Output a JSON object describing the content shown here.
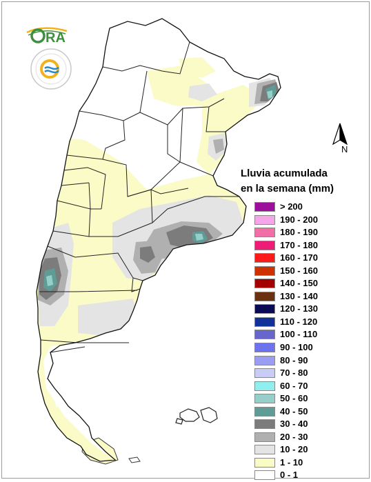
{
  "logos": {
    "ora": {
      "text": "ORA",
      "accent": "#3f8f3f",
      "sun": "#f2b21a"
    },
    "smn": {
      "ring_text": "SERVICIO METEOROLOGICO NACIONAL",
      "country": "ARGENTINA",
      "colors": [
        "#2b88c9",
        "#f2b21a"
      ]
    }
  },
  "north_arrow": {
    "label": "N"
  },
  "legend": {
    "title_line1": "Lluvia acumulada",
    "title_line2": "en la semana (mm)",
    "items": [
      {
        "label": "> 200",
        "color": "#9b0f9b"
      },
      {
        "label": "190 - 200",
        "color": "#f4a6e8"
      },
      {
        "label": "180 - 190",
        "color": "#f26ea6"
      },
      {
        "label": "170 - 180",
        "color": "#ee1c77"
      },
      {
        "label": "160 - 170",
        "color": "#ff1a1a"
      },
      {
        "label": "150 - 160",
        "color": "#cc3300"
      },
      {
        "label": "140 - 150",
        "color": "#a30000"
      },
      {
        "label": "130 - 140",
        "color": "#6b3010"
      },
      {
        "label": "120 - 130",
        "color": "#0a0a55"
      },
      {
        "label": "110 - 120",
        "color": "#113399"
      },
      {
        "label": "100 - 110",
        "color": "#6666cc"
      },
      {
        "label": "90 - 100",
        "color": "#6e72ef"
      },
      {
        "label": "80 - 90",
        "color": "#9a9df2"
      },
      {
        "label": "70 - 80",
        "color": "#c9ccf5"
      },
      {
        "label": "60 - 70",
        "color": "#8fefef"
      },
      {
        "label": "50 - 60",
        "color": "#96cfc9"
      },
      {
        "label": "40 - 50",
        "color": "#5f9c97"
      },
      {
        "label": "30 - 40",
        "color": "#7c7c7c"
      },
      {
        "label": "20 - 30",
        "color": "#b0b0b0"
      },
      {
        "label": "10 - 20",
        "color": "#e4e4e4"
      },
      {
        "label": "1 - 10",
        "color": "#fbfbc8"
      },
      {
        "label": "0 - 1",
        "color": "#ffffff"
      }
    ]
  }
}
